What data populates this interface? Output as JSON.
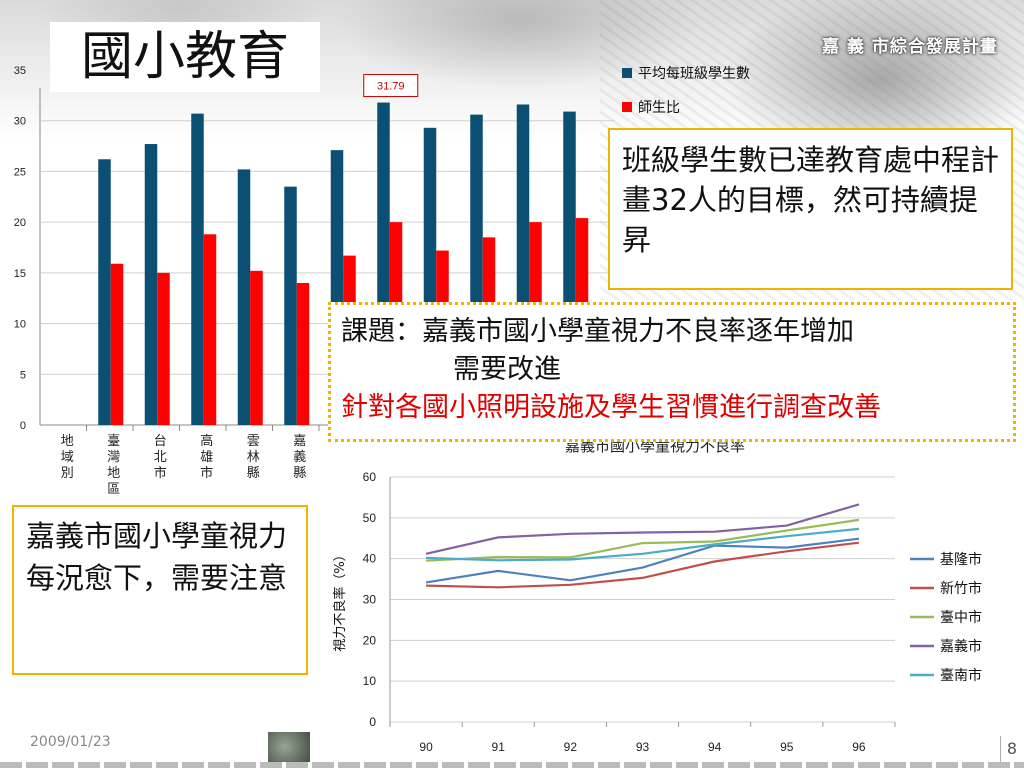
{
  "page": {
    "title": "國小教育",
    "brand": "嘉 義 市綜合發展計畫",
    "date": "2009/01/23",
    "page_number": "8"
  },
  "callouts": {
    "class_size": "班級學生數已達教育處中程計畫32人的目標，然可持續提昇",
    "issue_line1": "課題：嘉義市國小學童視力不良率逐年增加",
    "issue_line2": "需要改進",
    "issue_line3": "針對各國小照明設施及學生習慣進行調查改善",
    "vision_note": "嘉義市國小學童視力每況愈下，需要注意"
  },
  "colors": {
    "bar_series_1": "#0b4f72",
    "bar_series_2": "#ff0000",
    "callout_border": "#f0b400",
    "highlight_text": "#e00000",
    "line_keelung": "#4f81bd",
    "line_hsinchu": "#c0504d",
    "line_taichung": "#9bbb59",
    "line_chiayi": "#8064a2",
    "line_tainan": "#4bacc6"
  },
  "chart_data": [
    {
      "type": "bar",
      "categories": [
        "地域別",
        "臺灣地區",
        "台北市",
        "高雄市",
        "雲林縣",
        "嘉義縣",
        "",
        "",
        "",
        "",
        "",
        ""
      ],
      "series": [
        {
          "name": "平均每班級學生數",
          "values": [
            null,
            26.2,
            27.7,
            30.7,
            25.2,
            23.5,
            27.1,
            31.79,
            29.3,
            30.6,
            31.6,
            30.9
          ]
        },
        {
          "name": "師生比",
          "values": [
            null,
            15.9,
            15.0,
            18.8,
            15.2,
            14.0,
            16.7,
            20.0,
            17.2,
            18.5,
            20.0,
            20.4
          ]
        }
      ],
      "ylim": [
        0,
        35
      ],
      "yticks": [
        0,
        5,
        10,
        15,
        20,
        25,
        30,
        35
      ],
      "annotation": {
        "label": "31.79",
        "category_index": 7
      },
      "legend": "top-right",
      "grid": true
    },
    {
      "type": "line",
      "title": "嘉義市國小學童視力不良率",
      "ylabel": "視力不良率（%）",
      "x": [
        90,
        91,
        92,
        93,
        94,
        95,
        96
      ],
      "xticks": [
        "90",
        "91",
        "92",
        "93",
        "94",
        "95",
        "96"
      ],
      "ylim": [
        0,
        60
      ],
      "yticks": [
        0,
        10,
        20,
        30,
        40,
        50,
        60
      ],
      "legend": "right",
      "grid": true,
      "series": [
        {
          "name": "基隆市",
          "values": [
            34.2,
            37.0,
            34.7,
            37.8,
            43.2,
            42.7,
            44.9
          ]
        },
        {
          "name": "新竹市",
          "values": [
            33.4,
            33.0,
            33.6,
            35.3,
            39.3,
            41.8,
            43.9
          ]
        },
        {
          "name": "臺中市",
          "values": [
            39.5,
            40.4,
            40.3,
            43.8,
            44.2,
            46.9,
            49.5
          ]
        },
        {
          "name": "嘉義市",
          "values": [
            41.2,
            45.2,
            46.1,
            46.4,
            46.6,
            48.1,
            53.3
          ]
        },
        {
          "name": "臺南市",
          "values": [
            40.2,
            39.6,
            39.8,
            41.2,
            43.5,
            45.5,
            47.3
          ]
        }
      ]
    }
  ]
}
